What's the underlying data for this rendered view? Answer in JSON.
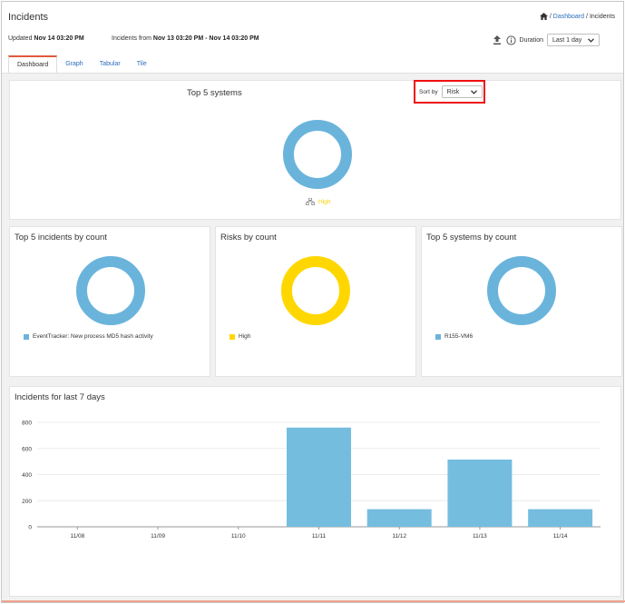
{
  "header": {
    "title": "Incidents",
    "breadcrumb": {
      "sep1": "/",
      "dashboard": "Dashboard",
      "sep2": "/",
      "current": "Incidents"
    },
    "updated_label": "Updated",
    "updated_value": "Nov 14 03:20 PM",
    "range_label": "Incidents from",
    "range_value": "Nov 13 03:20 PM - Nov 14 03:20 PM",
    "duration_label": "Duration",
    "duration_value": "Last 1 day"
  },
  "tabs": [
    {
      "label": "Dashboard",
      "active": true
    },
    {
      "label": "Graph",
      "active": false
    },
    {
      "label": "Tabular",
      "active": false
    },
    {
      "label": "Tile",
      "active": false
    }
  ],
  "top_systems": {
    "title": "Top 5 systems",
    "sort_label": "Sort by",
    "sort_value": "Risk",
    "legend_label": "High",
    "ring_color": "#6ab4dc",
    "legend_color": "#f5d000"
  },
  "incidents_by_count": {
    "title": "Top 5 incidents by count",
    "legend": "EventTracker: New process MD5 hash activity",
    "color": "#6ab4dc"
  },
  "risks_by_count": {
    "title": "Risks by count",
    "legend": "High",
    "color": "#ffd700"
  },
  "systems_by_count": {
    "title": "Top 5 systems by count",
    "legend": "R155-VM6",
    "color": "#6ab4dc"
  },
  "chart_data": {
    "type": "bar",
    "title": "Incidents for last 7 days",
    "categories": [
      "11/08",
      "11/09",
      "11/10",
      "11/11",
      "11/12",
      "11/13",
      "11/14"
    ],
    "values": [
      0,
      0,
      0,
      760,
      135,
      515,
      135
    ],
    "ylim": [
      0,
      800
    ],
    "yticks": [
      0,
      200,
      400,
      600,
      800
    ],
    "xlabel": "",
    "ylabel": "",
    "grid": true,
    "color": "#75bddf"
  }
}
